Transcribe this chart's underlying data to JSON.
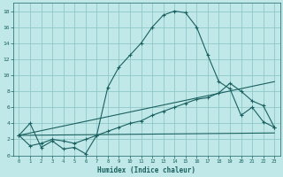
{
  "background_color": "#c0e8e8",
  "grid_color": "#90c8c8",
  "line_color": "#1a6060",
  "xlabel": "Humidex (Indice chaleur)",
  "ylim": [
    0,
    19
  ],
  "xlim": [
    -0.5,
    23.5
  ],
  "yticks": [
    0,
    2,
    4,
    6,
    8,
    10,
    12,
    14,
    16,
    18
  ],
  "xticks": [
    0,
    1,
    2,
    3,
    4,
    5,
    6,
    7,
    8,
    9,
    10,
    11,
    12,
    13,
    14,
    15,
    16,
    17,
    18,
    19,
    20,
    21,
    22,
    23
  ],
  "curve1_x": [
    0,
    1,
    2,
    3,
    4,
    5,
    6,
    7,
    8,
    9,
    10,
    11,
    12,
    13,
    14,
    15,
    16,
    17,
    18,
    19,
    20,
    21,
    22,
    23
  ],
  "curve1_y": [
    2.5,
    4.0,
    1.0,
    1.8,
    0.8,
    1.0,
    0.2,
    2.5,
    8.5,
    11.0,
    12.5,
    14.0,
    16.0,
    17.5,
    18.0,
    17.8,
    16.0,
    12.5,
    9.2,
    8.3,
    5.0,
    6.0,
    4.2,
    3.5
  ],
  "curve2_x": [
    0,
    1,
    2,
    3,
    4,
    5,
    6,
    7,
    8,
    9,
    10,
    11,
    12,
    13,
    14,
    15,
    16,
    17,
    18,
    19,
    20,
    21,
    22,
    23
  ],
  "curve2_y": [
    2.5,
    1.2,
    1.5,
    2.0,
    1.8,
    1.5,
    2.0,
    2.5,
    3.0,
    3.5,
    4.0,
    4.3,
    5.0,
    5.5,
    6.0,
    6.5,
    7.0,
    7.2,
    7.8,
    9.0,
    8.0,
    6.8,
    6.2,
    3.5
  ],
  "line1_x": [
    0,
    23
  ],
  "line1_y": [
    2.5,
    9.2
  ],
  "line2_x": [
    0,
    23
  ],
  "line2_y": [
    2.5,
    2.8
  ]
}
